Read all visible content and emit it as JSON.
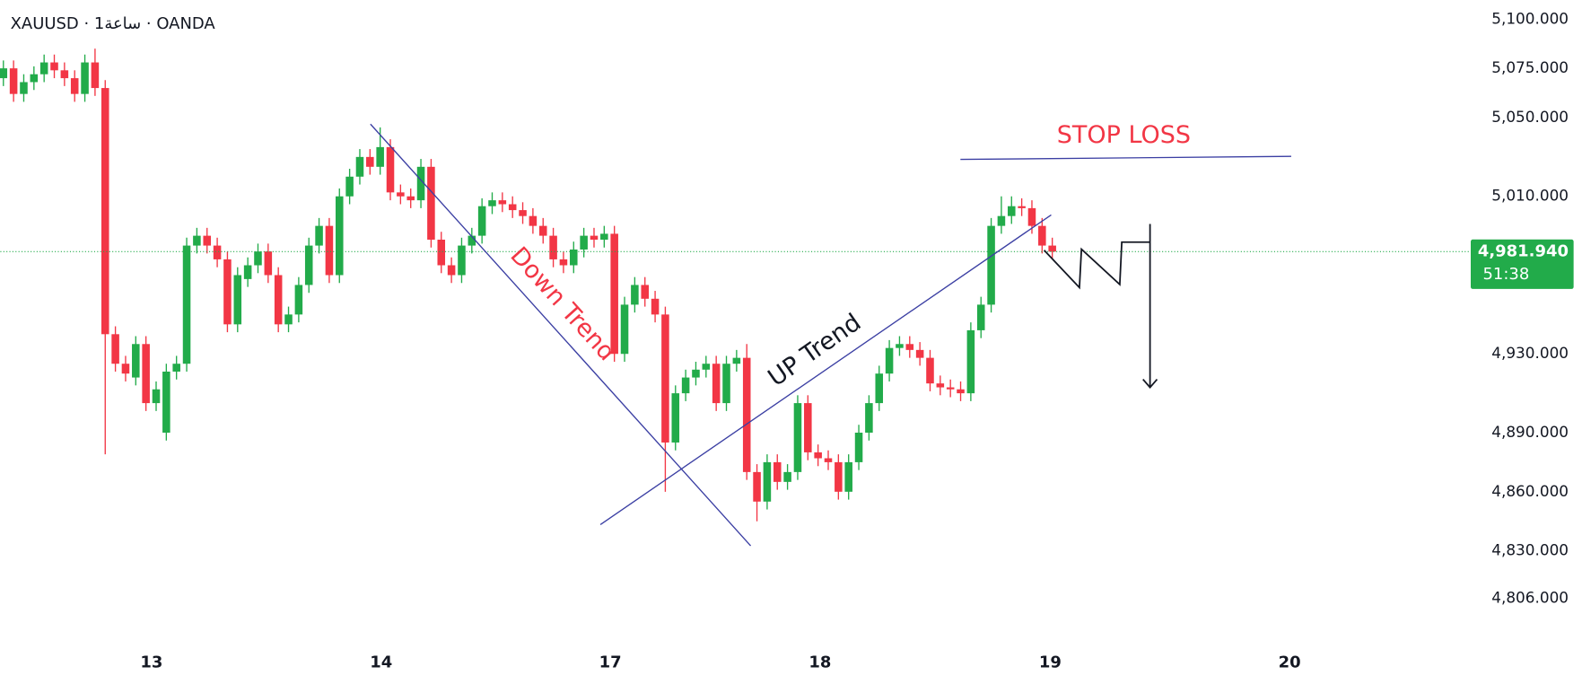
{
  "chart_data": {
    "type": "candlestick",
    "title": "XAUUSD · 1ساعة · OANDA",
    "up_color": "#22ab4a",
    "down_color": "#f23645",
    "open": [
      5070,
      5075,
      5062,
      5068,
      5072,
      5078,
      5074,
      5070,
      5062,
      5078,
      5065,
      4940,
      4925,
      4918,
      4935,
      4905,
      4890,
      4921,
      4925,
      4985,
      4990,
      4985,
      4978,
      4945,
      4968,
      4975,
      4982,
      4970,
      4945,
      4950,
      4965,
      4985,
      4995,
      4970,
      5010,
      5020,
      5030,
      5025,
      5035,
      5012,
      5010,
      5008,
      5025,
      4988,
      4975,
      4970,
      4985,
      4990,
      5005,
      5008,
      5006,
      5003,
      5000,
      4995,
      4990,
      4978,
      4975,
      4983,
      4990,
      4988,
      4991,
      4930,
      4955,
      4965,
      4958,
      4950,
      4885,
      4910,
      4918,
      4922,
      4925,
      4905,
      4925,
      4928,
      4870,
      4855,
      4875,
      4865,
      4870,
      4905,
      4880,
      4877,
      4875,
      4860,
      4875,
      4890,
      4905,
      4920,
      4933,
      4935,
      4932,
      4928,
      4915,
      4913,
      4912,
      4910,
      4942,
      4955,
      4995,
      5000,
      5005,
      5004,
      4995,
      4985
    ],
    "high": [
      5079,
      5079,
      5072,
      5076,
      5082,
      5082,
      5078,
      5074,
      5082,
      5085,
      5069,
      4944,
      4929,
      4939,
      4939,
      4916,
      4925,
      4929,
      4989,
      4994,
      4994,
      4989,
      4982,
      4974,
      4979,
      4986,
      4986,
      4974,
      4954,
      4969,
      4989,
      4999,
      4999,
      5014,
      5024,
      5034,
      5034,
      5045,
      5039,
      5016,
      5014,
      5029,
      5029,
      4992,
      4979,
      4989,
      4994,
      5009,
      5012,
      5012,
      5010,
      5007,
      5004,
      4999,
      4994,
      4982,
      4987,
      4994,
      4994,
      4995,
      4995,
      4959,
      4969,
      4969,
      4962,
      4954,
      4914,
      4922,
      4926,
      4929,
      4929,
      4929,
      4932,
      4935,
      4874,
      4879,
      4879,
      4874,
      4909,
      4909,
      4884,
      4881,
      4879,
      4879,
      4894,
      4909,
      4924,
      4937,
      4939,
      4939,
      4936,
      4932,
      4919,
      4917,
      4916,
      4946,
      4959,
      4999,
      5010,
      5010,
      5009,
      5008,
      4999,
      4989
    ],
    "low": [
      5066,
      5058,
      5058,
      5064,
      5068,
      5070,
      5066,
      5058,
      5058,
      5061,
      4879,
      4921,
      4916,
      4914,
      4901,
      4901,
      4886,
      4917,
      4921,
      4981,
      4981,
      4974,
      4941,
      4941,
      4964,
      4971,
      4966,
      4941,
      4941,
      4946,
      4961,
      4981,
      4966,
      4966,
      5006,
      5016,
      5021,
      5021,
      5008,
      5006,
      5004,
      5004,
      4984,
      4971,
      4966,
      4966,
      4981,
      4986,
      5001,
      5002,
      4999,
      4996,
      4991,
      4986,
      4974,
      4971,
      4971,
      4979,
      4984,
      4984,
      4926,
      4926,
      4951,
      4954,
      4946,
      4860,
      4881,
      4906,
      4914,
      4918,
      4901,
      4901,
      4921,
      4866,
      4845,
      4851,
      4861,
      4861,
      4866,
      4876,
      4873,
      4871,
      4856,
      4856,
      4871,
      4886,
      4901,
      4916,
      4929,
      4928,
      4924,
      4911,
      4909,
      4908,
      4906,
      4906,
      4938,
      4951,
      4991,
      4996,
      5000,
      4991,
      4981,
      4978
    ],
    "close": [
      5075,
      5062,
      5068,
      5072,
      5078,
      5074,
      5070,
      5062,
      5078,
      5065,
      4940,
      4925,
      4920,
      4935,
      4905,
      4912,
      4921,
      4925,
      4985,
      4990,
      4985,
      4978,
      4945,
      4970,
      4975,
      4982,
      4970,
      4945,
      4950,
      4965,
      4985,
      4995,
      4970,
      5010,
      5020,
      5030,
      5025,
      5035,
      5012,
      5010,
      5008,
      5025,
      4988,
      4975,
      4970,
      4985,
      4990,
      5005,
      5008,
      5006,
      5003,
      5000,
      4995,
      4990,
      4978,
      4975,
      4983,
      4990,
      4988,
      4991,
      4930,
      4955,
      4965,
      4958,
      4950,
      4885,
      4910,
      4918,
      4922,
      4925,
      4905,
      4925,
      4928,
      4870,
      4855,
      4875,
      4865,
      4870,
      4905,
      4880,
      4877,
      4875,
      4860,
      4875,
      4890,
      4905,
      4920,
      4933,
      4935,
      4932,
      4928,
      4915,
      4913,
      4912,
      4910,
      4942,
      4955,
      4995,
      5000,
      5005,
      5004,
      4995,
      4985,
      4981.94
    ],
    "xlim": [
      -0.3,
      143.3
    ],
    "xticks": [
      {
        "value": 14.55,
        "label": "13"
      },
      {
        "value": 37.1,
        "label": "14"
      },
      {
        "value": 59.6,
        "label": "17"
      },
      {
        "value": 80.2,
        "label": "18"
      },
      {
        "value": 102.8,
        "label": "19"
      },
      {
        "value": 126.3,
        "label": "20"
      }
    ],
    "ylim": [
      4784.4,
      5109.7
    ],
    "yticks": [
      {
        "value": 5100,
        "label": "5,100.000"
      },
      {
        "value": 5075,
        "label": "5,075.000"
      },
      {
        "value": 5050,
        "label": "5,050.000"
      },
      {
        "value": 5010,
        "label": "5,010.000"
      },
      {
        "value": 4930,
        "label": "4,930.000"
      },
      {
        "value": 4890,
        "label": "4,890.000"
      },
      {
        "value": 4860,
        "label": "4,860.000"
      },
      {
        "value": 4830,
        "label": "4,830.000"
      },
      {
        "value": 4806,
        "label": "4,806.000"
      }
    ],
    "last_price": {
      "value": 4981.94,
      "label": "4,981.940"
    },
    "countdown": "51:38",
    "annotations": [
      "Down Trend",
      "UP Trend",
      "STOP LOSS"
    ]
  }
}
